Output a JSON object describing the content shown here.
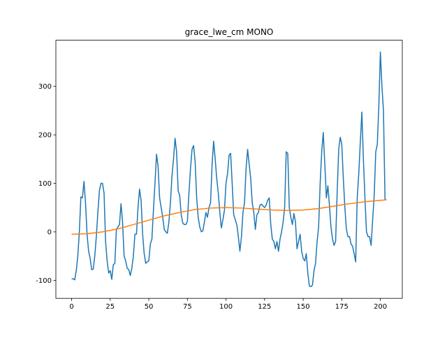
{
  "chart_data": {
    "type": "line",
    "title": "grace_lwe_cm MONO",
    "series": [
      {
        "color": "#1f77b4",
        "x": [
          0,
          1,
          2,
          3,
          4,
          5,
          6,
          7,
          8,
          9,
          10,
          11,
          12,
          13,
          14,
          15,
          16,
          17,
          18,
          19,
          20,
          21,
          22,
          23,
          24,
          25,
          26,
          27,
          28,
          29,
          30,
          31,
          32,
          33,
          34,
          35,
          36,
          37,
          38,
          39,
          40,
          41,
          42,
          43,
          44,
          45,
          46,
          47,
          48,
          49,
          50,
          51,
          52,
          53,
          54,
          55,
          56,
          57,
          58,
          59,
          60,
          61,
          62,
          63,
          64,
          65,
          66,
          67,
          68,
          69,
          70,
          71,
          72,
          73,
          74,
          75,
          76,
          77,
          78,
          79,
          80,
          81,
          82,
          83,
          84,
          85,
          86,
          87,
          88,
          89,
          90,
          91,
          92,
          93,
          94,
          95,
          96,
          97,
          98,
          99,
          100,
          101,
          102,
          103,
          104,
          105,
          106,
          107,
          108,
          109,
          110,
          111,
          112,
          113,
          114,
          115,
          116,
          117,
          118,
          119,
          120,
          121,
          122,
          123,
          124,
          125,
          126,
          127,
          128,
          129,
          130,
          131,
          132,
          133,
          134,
          135,
          136,
          137,
          138,
          139,
          140,
          141,
          142,
          143,
          144,
          145,
          146,
          147,
          148,
          149,
          150,
          151,
          152,
          153,
          154,
          155,
          156,
          157,
          158,
          159,
          160,
          161,
          162,
          163,
          164,
          165,
          166,
          167,
          168,
          169,
          170,
          171,
          172,
          173,
          174,
          175,
          176,
          177,
          178,
          179,
          180,
          181,
          182,
          183,
          184,
          185,
          186,
          187,
          188,
          189,
          190,
          191,
          192,
          193,
          194,
          195,
          196,
          197,
          198,
          199,
          200,
          201,
          202,
          203,
          204
        ],
        "values": [
          -97,
          -97,
          -99,
          -80,
          -50,
          0,
          72,
          70,
          104,
          60,
          -5,
          -40,
          -55,
          -78,
          -77,
          -50,
          -10,
          40,
          85,
          100,
          100,
          80,
          -20,
          -60,
          -85,
          -80,
          -98,
          -68,
          -65,
          5,
          10,
          15,
          58,
          20,
          -50,
          -60,
          -75,
          -78,
          -90,
          -75,
          -50,
          -5,
          -5,
          50,
          88,
          65,
          -5,
          -45,
          -65,
          -62,
          -60,
          -25,
          -15,
          45,
          100,
          160,
          135,
          70,
          50,
          30,
          5,
          0,
          -3,
          20,
          60,
          115,
          150,
          193,
          165,
          85,
          75,
          35,
          18,
          15,
          15,
          22,
          80,
          130,
          170,
          178,
          145,
          70,
          30,
          10,
          0,
          2,
          20,
          40,
          30,
          50,
          60,
          140,
          187,
          150,
          110,
          80,
          40,
          8,
          25,
          45,
          100,
          120,
          158,
          162,
          100,
          35,
          25,
          15,
          -10,
          -40,
          -10,
          40,
          60,
          130,
          170,
          140,
          110,
          60,
          40,
          5,
          35,
          40,
          55,
          57,
          53,
          50,
          55,
          65,
          70,
          15,
          -15,
          -20,
          -35,
          -20,
          -40,
          -15,
          0,
          20,
          50,
          165,
          162,
          50,
          30,
          15,
          38,
          20,
          -35,
          -20,
          -5,
          -40,
          -55,
          -60,
          -45,
          -85,
          -112,
          -113,
          -110,
          -80,
          -65,
          -20,
          10,
          100,
          165,
          205,
          140,
          70,
          95,
          55,
          10,
          -15,
          -28,
          -20,
          80,
          170,
          195,
          180,
          110,
          50,
          5,
          -10,
          -10,
          -25,
          -30,
          -45,
          -62,
          70,
          120,
          185,
          247,
          150,
          70,
          0,
          -10,
          -10,
          -28,
          25,
          75,
          165,
          180,
          260,
          371,
          300,
          250,
          66,
          66
        ]
      },
      {
        "color": "#ff7f0e",
        "x": [
          0,
          10,
          20,
          30,
          40,
          50,
          60,
          70,
          80,
          90,
          100,
          110,
          120,
          130,
          140,
          150,
          160,
          170,
          180,
          190,
          200,
          204
        ],
        "values": [
          -5,
          -4,
          0,
          6,
          15,
          24,
          33,
          40,
          46,
          49,
          50,
          49,
          47,
          45,
          44,
          45,
          48,
          53,
          58,
          62,
          65,
          66
        ]
      }
    ],
    "xlim": [
      -10.2,
      214.2
    ],
    "xticks": [
      0,
      25,
      50,
      75,
      100,
      125,
      150,
      175,
      200
    ],
    "ylim": [
      -137.2,
      395.2
    ],
    "yticks": [
      -100,
      0,
      100,
      200,
      300
    ]
  }
}
